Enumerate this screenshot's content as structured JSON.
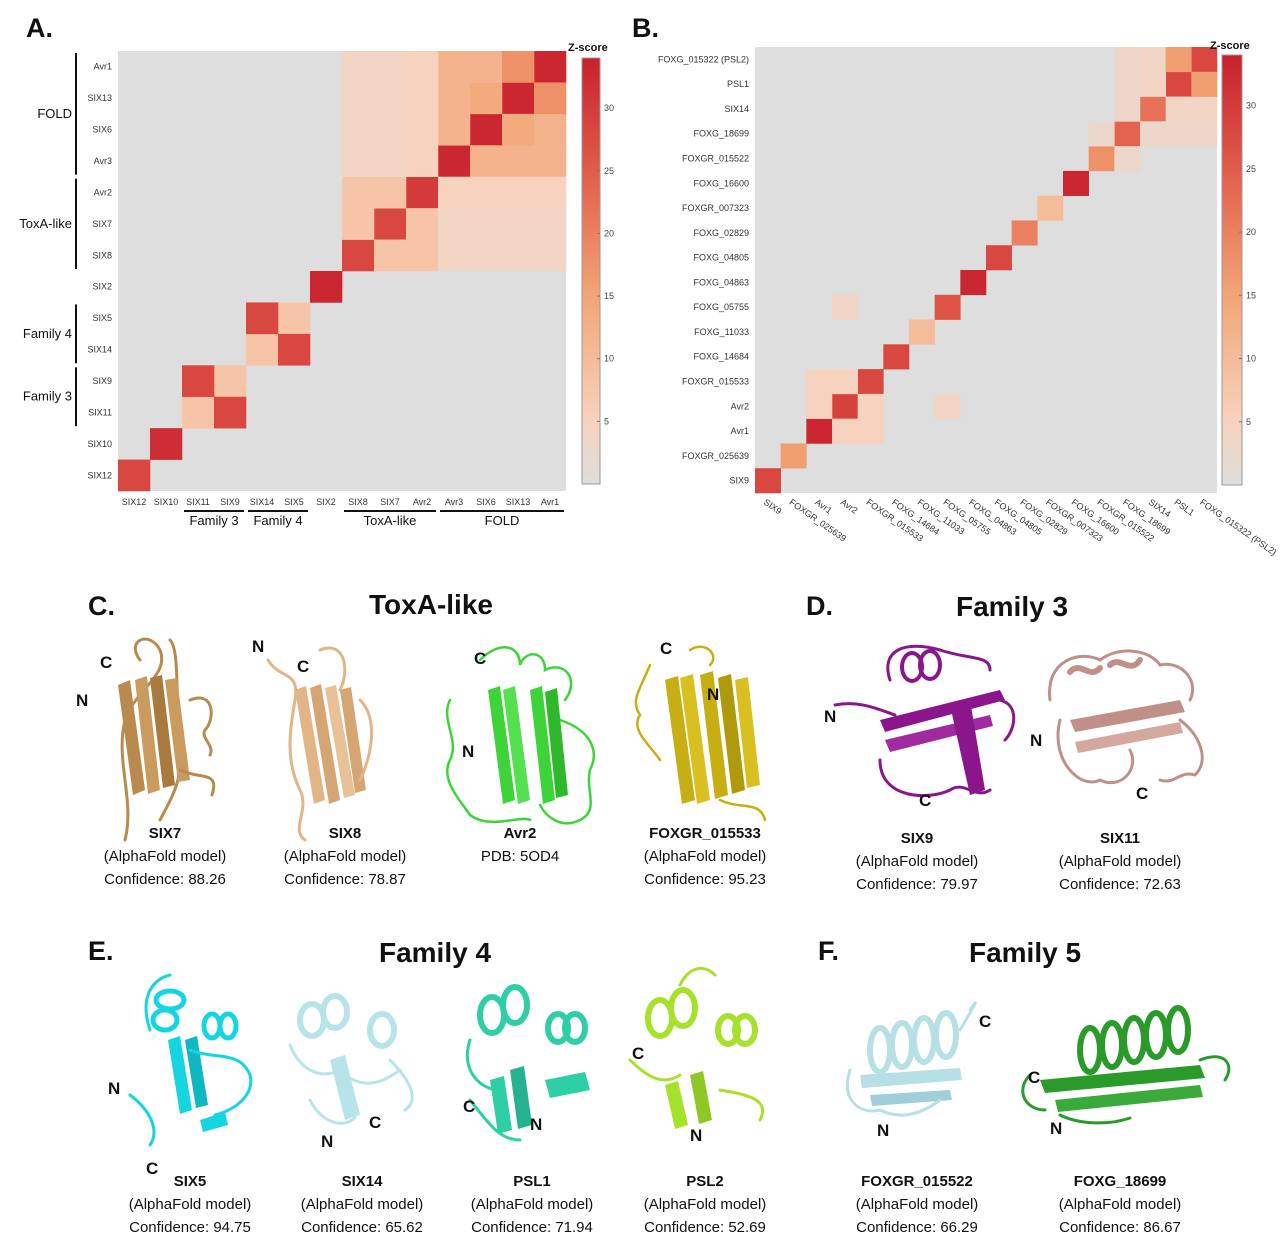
{
  "panels": {
    "A": "A.",
    "B": "B.",
    "C": "C.",
    "D": "D.",
    "E": "E.",
    "F": "F."
  },
  "titles": {
    "C": "ToxA-like",
    "D": "Family 3",
    "E": "Family 4",
    "F": "Family 5"
  },
  "heatmapA": {
    "type": "heatmap",
    "colorbar_title": "Z-score",
    "colorbar_ticks": [
      5,
      10,
      15,
      20,
      25,
      30
    ],
    "zrange": [
      0,
      34
    ],
    "labels": [
      "SIX12",
      "SIX10",
      "SIX11",
      "SIX9",
      "SIX14",
      "SIX5",
      "SIX2",
      "SIX8",
      "SIX7",
      "Avr2",
      "Avr3",
      "SIX6",
      "SIX13",
      "Avr1"
    ],
    "cells": [
      [
        0,
        0,
        28
      ],
      [
        1,
        1,
        32
      ],
      [
        2,
        2,
        8
      ],
      [
        3,
        3,
        8
      ],
      [
        2,
        3,
        28
      ],
      [
        3,
        2,
        28
      ],
      [
        4,
        4,
        8
      ],
      [
        5,
        5,
        8
      ],
      [
        4,
        5,
        28
      ],
      [
        5,
        4,
        28
      ],
      [
        6,
        6,
        33
      ],
      [
        7,
        7,
        28
      ],
      [
        8,
        8,
        28
      ],
      [
        9,
        9,
        30
      ],
      [
        7,
        8,
        8
      ],
      [
        8,
        7,
        8
      ],
      [
        7,
        9,
        8
      ],
      [
        9,
        7,
        8
      ],
      [
        8,
        9,
        8
      ],
      [
        9,
        8,
        8
      ],
      [
        10,
        10,
        33
      ],
      [
        11,
        11,
        33
      ],
      [
        12,
        12,
        33
      ],
      [
        13,
        13,
        33
      ],
      [
        10,
        11,
        12
      ],
      [
        11,
        10,
        12
      ],
      [
        10,
        12,
        12
      ],
      [
        12,
        10,
        12
      ],
      [
        10,
        13,
        12
      ],
      [
        13,
        10,
        12
      ],
      [
        11,
        12,
        14
      ],
      [
        12,
        11,
        14
      ],
      [
        11,
        13,
        12
      ],
      [
        13,
        11,
        12
      ],
      [
        12,
        13,
        18
      ],
      [
        13,
        12,
        18
      ],
      [
        7,
        10,
        4
      ],
      [
        7,
        11,
        4
      ],
      [
        7,
        12,
        4
      ],
      [
        7,
        13,
        4
      ],
      [
        8,
        10,
        4
      ],
      [
        8,
        11,
        4
      ],
      [
        8,
        12,
        4
      ],
      [
        8,
        13,
        4
      ],
      [
        9,
        10,
        5
      ],
      [
        9,
        11,
        5
      ],
      [
        9,
        12,
        5
      ],
      [
        9,
        13,
        5
      ],
      [
        10,
        7,
        4
      ],
      [
        10,
        8,
        4
      ],
      [
        10,
        9,
        5
      ],
      [
        11,
        7,
        4
      ],
      [
        11,
        8,
        4
      ],
      [
        11,
        9,
        5
      ],
      [
        12,
        7,
        4
      ],
      [
        12,
        8,
        4
      ],
      [
        12,
        9,
        5
      ],
      [
        13,
        7,
        4
      ],
      [
        13,
        8,
        4
      ],
      [
        13,
        9,
        5
      ]
    ],
    "row_groups": [
      {
        "label": "FOLD",
        "from": "Avr1",
        "to": "Avr3"
      },
      {
        "label": "ToxA-like",
        "from": "Avr2",
        "to": "SIX8"
      },
      {
        "label": "Family 4",
        "from": "SIX5",
        "to": "SIX14"
      },
      {
        "label": "Family 3",
        "from": "SIX9",
        "to": "SIX11"
      }
    ],
    "col_groups": [
      {
        "label": "Family 3",
        "from": "SIX11",
        "to": "SIX9"
      },
      {
        "label": "Family 4",
        "from": "SIX14",
        "to": "SIX5"
      },
      {
        "label": "ToxA-like",
        "from": "SIX8",
        "to": "Avr2"
      },
      {
        "label": "FOLD",
        "from": "Avr3",
        "to": "Avr1"
      }
    ]
  },
  "heatmapB": {
    "type": "heatmap",
    "colorbar_title": "Z-score",
    "colorbar_ticks": [
      5,
      10,
      15,
      20,
      25,
      30
    ],
    "zrange": [
      0,
      34
    ],
    "labels": [
      "SIX9",
      "FOXGR_025639",
      "Avr1",
      "Avr2",
      "FOXGR_015533",
      "FOXG_14684",
      "FOXG_11033",
      "FOXG_05755",
      "FOXG_04863",
      "FOXG_04805",
      "FOXG_02829",
      "FOXGR_007323",
      "FOXG_16600",
      "FOXGR_015522",
      "FOXG_18699",
      "SIX14",
      "PSL1",
      "FOXG_015322 (PSL2)"
    ],
    "cells": [
      [
        0,
        0,
        28
      ],
      [
        1,
        1,
        16
      ],
      [
        2,
        2,
        33
      ],
      [
        3,
        3,
        29
      ],
      [
        4,
        4,
        28
      ],
      [
        5,
        5,
        28
      ],
      [
        6,
        6,
        10
      ],
      [
        7,
        7,
        26
      ],
      [
        8,
        8,
        33
      ],
      [
        9,
        9,
        28
      ],
      [
        10,
        10,
        20
      ],
      [
        11,
        11,
        10
      ],
      [
        12,
        12,
        33
      ],
      [
        13,
        13,
        18
      ],
      [
        14,
        14,
        24
      ],
      [
        15,
        15,
        22
      ],
      [
        16,
        16,
        28
      ],
      [
        17,
        17,
        28
      ],
      [
        2,
        3,
        5
      ],
      [
        3,
        2,
        5
      ],
      [
        2,
        4,
        5
      ],
      [
        4,
        2,
        5
      ],
      [
        3,
        4,
        5
      ],
      [
        4,
        3,
        5
      ],
      [
        3,
        7,
        4
      ],
      [
        7,
        3,
        4
      ],
      [
        13,
        14,
        3
      ],
      [
        14,
        13,
        3
      ],
      [
        14,
        15,
        3
      ],
      [
        15,
        14,
        3
      ],
      [
        14,
        16,
        3
      ],
      [
        16,
        14,
        3
      ],
      [
        14,
        17,
        3
      ],
      [
        17,
        14,
        3
      ],
      [
        15,
        16,
        4
      ],
      [
        16,
        15,
        4
      ],
      [
        15,
        17,
        4
      ],
      [
        17,
        15,
        4
      ],
      [
        16,
        17,
        16
      ],
      [
        17,
        16,
        16
      ]
    ]
  },
  "structures": [
    {
      "name": "SIX7",
      "line1": "(AlphaFold model)",
      "line2": "Confidence: 88.26",
      "color": "#b98a4e",
      "termini": [
        "C",
        "N"
      ]
    },
    {
      "name": "SIX8",
      "line1": "(AlphaFold model)",
      "line2": "Confidence: 78.87",
      "color": "#e2b587",
      "termini": [
        "N",
        "C"
      ]
    },
    {
      "name": "Avr2",
      "line1": "PDB: 5OD4",
      "line2": "",
      "color": "#3dd43a",
      "termini": [
        "C",
        "N"
      ]
    },
    {
      "name": "FOXGR_015533",
      "line1": "(AlphaFold model)",
      "line2": "Confidence: 95.23",
      "color": "#c7ae12",
      "termini": [
        "C",
        "N"
      ]
    },
    {
      "name": "SIX9",
      "line1": "(AlphaFold model)",
      "line2": "Confidence: 79.97",
      "color": "#8b168b",
      "termini": [
        "N",
        "C"
      ]
    },
    {
      "name": "SIX11",
      "line1": "(AlphaFold model)",
      "line2": "Confidence: 72.63",
      "color": "#c09088",
      "termini": [
        "N",
        "C"
      ]
    },
    {
      "name": "SIX5",
      "line1": "(AlphaFold model)",
      "line2": "Confidence: 94.75",
      "color": "#15d6e0",
      "termini": [
        "N",
        "C"
      ]
    },
    {
      "name": "SIX14",
      "line1": "(AlphaFold model)",
      "line2": "Confidence: 65.62",
      "color": "#b7e3ea",
      "termini": [
        "N",
        "C"
      ]
    },
    {
      "name": "PSL1",
      "line1": "(AlphaFold model)",
      "line2": "Confidence: 71.94",
      "color": "#2ecfa5",
      "termini": [
        "C",
        "N"
      ]
    },
    {
      "name": "PSL2",
      "line1": "(AlphaFold model)",
      "line2": "Confidence: 52.69",
      "color": "#a6e22c",
      "termini": [
        "C",
        "N"
      ]
    },
    {
      "name": "FOXGR_015522",
      "line1": "(AlphaFold model)",
      "line2": "Confidence: 66.29",
      "color": "#b7dfe6",
      "termini": [
        "C",
        "N"
      ]
    },
    {
      "name": "FOXG_18699",
      "line1": "(AlphaFold model)",
      "line2": "Confidence: 86.67",
      "color": "#2a9a2a",
      "termini": [
        "C",
        "N"
      ]
    }
  ]
}
